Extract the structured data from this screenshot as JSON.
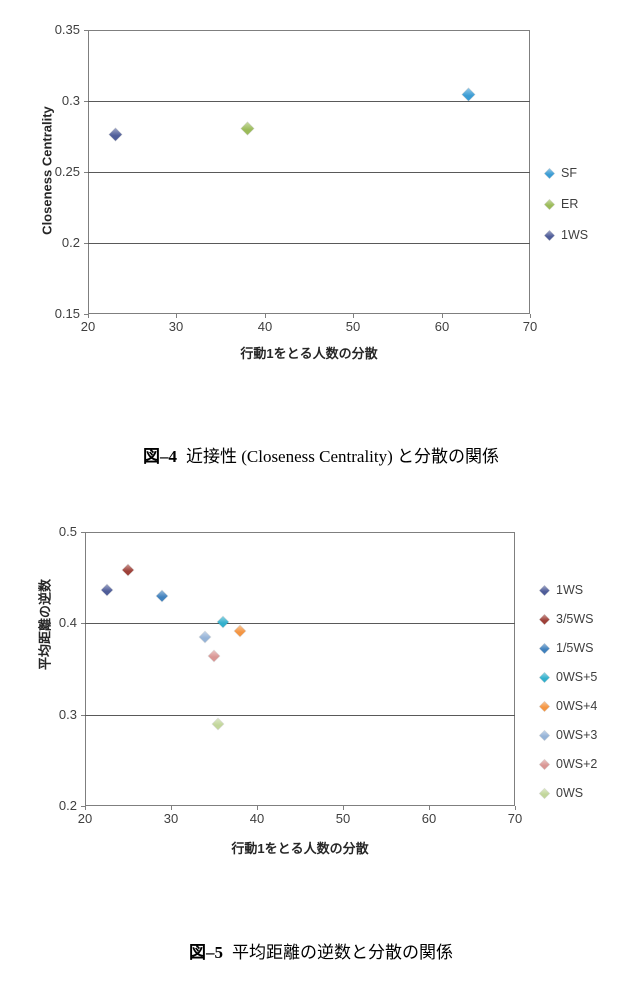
{
  "page": {
    "background": "#ffffff"
  },
  "captions": [
    {
      "label": "図–4",
      "text": "近接性 (Closeness Centrality) と分散の関係"
    },
    {
      "label": "図–5",
      "text": "平均距離の逆数と分散の関係"
    }
  ],
  "chart_data": [
    {
      "type": "scatter",
      "title": "",
      "xlabel": "行動1をとる人数の分散",
      "ylabel": "Closeness Centrality",
      "xlim": [
        20,
        70
      ],
      "ylim": [
        0.15,
        0.35
      ],
      "xticks": [
        20,
        30,
        40,
        50,
        60,
        70
      ],
      "yticks": [
        0.15,
        0.2,
        0.25,
        0.3,
        0.35
      ],
      "grid": "horizontal",
      "legend_position": "right",
      "marker_shape": "diamond",
      "series": [
        {
          "name": "SF",
          "color": "#3B9CD4",
          "points": [
            [
              63,
              0.305
            ]
          ]
        },
        {
          "name": "ER",
          "color": "#9BBB59",
          "points": [
            [
              38,
              0.281
            ]
          ]
        },
        {
          "name": "1WS",
          "color": "#4F5D99",
          "points": [
            [
              23,
              0.277
            ]
          ]
        }
      ]
    },
    {
      "type": "scatter",
      "title": "",
      "xlabel": "行動1をとる人数の分散",
      "ylabel": "平均距離の逆数",
      "xlim": [
        20,
        70
      ],
      "ylim": [
        0.2,
        0.5
      ],
      "xticks": [
        20,
        30,
        40,
        50,
        60,
        70
      ],
      "yticks": [
        0.2,
        0.3,
        0.4,
        0.5
      ],
      "grid": "horizontal",
      "legend_position": "right",
      "marker_shape": "diamond",
      "series": [
        {
          "name": "1WS",
          "color": "#4F5D99",
          "points": [
            [
              22.5,
              0.437
            ]
          ]
        },
        {
          "name": "3/5WS",
          "color": "#9E4038",
          "points": [
            [
              25,
              0.458
            ]
          ]
        },
        {
          "name": "1/5WS",
          "color": "#4081BD",
          "points": [
            [
              29,
              0.43
            ]
          ]
        },
        {
          "name": "0WS+5",
          "color": "#33B0CC",
          "points": [
            [
              36,
              0.401
            ]
          ]
        },
        {
          "name": "0WS+4",
          "color": "#F49542",
          "points": [
            [
              38,
              0.392
            ]
          ]
        },
        {
          "name": "0WS+3",
          "color": "#95B3D7",
          "points": [
            [
              34,
              0.385
            ]
          ]
        },
        {
          "name": "0WS+2",
          "color": "#D99694",
          "points": [
            [
              35,
              0.364
            ]
          ]
        },
        {
          "name": "0WS",
          "color": "#C2D69B",
          "points": [
            [
              35.5,
              0.29
            ]
          ]
        }
      ]
    }
  ]
}
